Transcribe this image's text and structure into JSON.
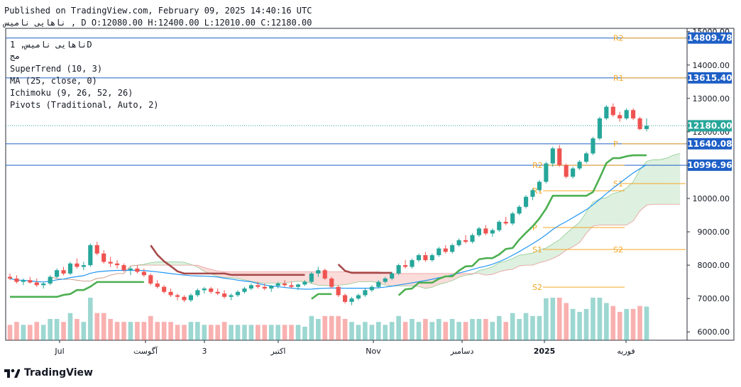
{
  "header": {
    "published": "Published on TradingView.com, February 09, 2025 14:40:16 UTC",
    "ohlc_line": "ناهایی نامیس , D O:12080.00 H:12400.00 L:12010.00 C:12180.00"
  },
  "legend": {
    "symbol": "ناهایی نامیس, 1D",
    "exchange": "مج",
    "indicators": [
      "SuperTrend (10, 3)",
      "MA (25, close, 0)",
      "Ichimoku (9, 26, 52, 26)",
      "Pivots (Traditional, Auto, 2)"
    ]
  },
  "branding": {
    "logo_text": "TradingView"
  },
  "colors": {
    "up": "#26a69a",
    "down": "#ef5350",
    "supertrend_up": "#4caf50",
    "supertrend_down": "#a84a4a",
    "ma": "#2196f3",
    "pivot": "#f5a623",
    "hline": "#1e5fc6",
    "cloud_red": "#f8c9c6",
    "cloud_green": "#cde8cf"
  },
  "chart_data": {
    "type": "candlestick",
    "title": "",
    "y_axis": {
      "ticks": [
        "15000.00",
        "14000.00",
        "13000.00",
        "12000.00",
        "11000.00",
        "10000.00",
        "9000.00",
        "8000.00",
        "7000.00",
        "6000.00"
      ],
      "ylim": [
        5750,
        15100
      ]
    },
    "x_axis": {
      "labels": [
        "Jul",
        "آگوست",
        "3",
        "اکتبر",
        "Nov",
        "دسامبر",
        "2025",
        "فوریه"
      ]
    },
    "last_close": 12180,
    "price_labels": [
      {
        "text": "14809.78",
        "value": 14809.78
      },
      {
        "text": "13615.40",
        "value": 13615.4
      },
      {
        "text": "12180.00",
        "value": 12180.0
      },
      {
        "text": "11640.08",
        "value": 11640.08
      },
      {
        "text": "10996.96",
        "value": 10996.96
      }
    ],
    "pivots_current": [
      {
        "label": "R2",
        "value": 14809.78
      },
      {
        "label": "R1",
        "value": 13615.4
      },
      {
        "label": "P",
        "value": 11640.08
      },
      {
        "label": "S1",
        "value": 10446
      },
      {
        "label": "S2",
        "value": 8470
      }
    ],
    "pivots_previous": [
      {
        "label": "R2",
        "value": 10996.96
      },
      {
        "label": "R1",
        "value": 10230
      },
      {
        "label": "P",
        "value": 9130
      },
      {
        "label": "S1",
        "value": 8470
      },
      {
        "label": "S2",
        "value": 7340
      }
    ],
    "candles": [
      [
        7650,
        7750,
        7550,
        7600
      ],
      [
        7600,
        7700,
        7450,
        7500
      ],
      [
        7500,
        7600,
        7400,
        7550
      ],
      [
        7550,
        7650,
        7450,
        7480
      ],
      [
        7480,
        7600,
        7350,
        7400
      ],
      [
        7400,
        7500,
        7300,
        7450
      ],
      [
        7450,
        7700,
        7400,
        7650
      ],
      [
        7650,
        7900,
        7600,
        7850
      ],
      [
        7850,
        7950,
        7700,
        7750
      ],
      [
        7750,
        8100,
        7700,
        8050
      ],
      [
        8050,
        8200,
        7900,
        7950
      ],
      [
        7950,
        8100,
        7850,
        8000
      ],
      [
        8000,
        8650,
        7950,
        8600
      ],
      [
        8600,
        8700,
        8300,
        8350
      ],
      [
        8350,
        8450,
        8050,
        8100
      ],
      [
        8100,
        8250,
        7950,
        8050
      ],
      [
        8050,
        8150,
        7900,
        8000
      ],
      [
        8000,
        8050,
        7800,
        7850
      ],
      [
        7850,
        7950,
        7700,
        7900
      ],
      [
        7900,
        8000,
        7750,
        7800
      ],
      [
        7800,
        7900,
        7650,
        7700
      ],
      [
        7700,
        7750,
        7400,
        7450
      ],
      [
        7450,
        7550,
        7300,
        7350
      ],
      [
        7350,
        7400,
        7150,
        7200
      ],
      [
        7200,
        7300,
        7050,
        7100
      ],
      [
        7100,
        7150,
        6950,
        7050
      ],
      [
        7050,
        7100,
        6900,
        6950
      ],
      [
        6950,
        7150,
        6900,
        7100
      ],
      [
        7100,
        7300,
        7050,
        7250
      ],
      [
        7250,
        7350,
        7150,
        7300
      ],
      [
        7300,
        7350,
        7150,
        7200
      ],
      [
        7200,
        7300,
        7100,
        7150
      ],
      [
        7150,
        7250,
        7000,
        7050
      ],
      [
        7050,
        7150,
        6950,
        7100
      ],
      [
        7100,
        7250,
        7050,
        7200
      ],
      [
        7200,
        7350,
        7150,
        7300
      ],
      [
        7300,
        7450,
        7250,
        7400
      ],
      [
        7400,
        7500,
        7300,
        7350
      ],
      [
        7350,
        7450,
        7250,
        7300
      ],
      [
        7300,
        7400,
        7200,
        7380
      ],
      [
        7380,
        7500,
        7300,
        7450
      ],
      [
        7450,
        7550,
        7350,
        7400
      ],
      [
        7400,
        7500,
        7300,
        7350
      ],
      [
        7350,
        7450,
        7250,
        7420
      ],
      [
        7420,
        7550,
        7380,
        7500
      ],
      [
        7500,
        7800,
        7450,
        7750
      ],
      [
        7750,
        7950,
        7650,
        7850
      ],
      [
        7850,
        7900,
        7550,
        7600
      ],
      [
        7600,
        7650,
        7300,
        7350
      ],
      [
        7350,
        7400,
        7050,
        7100
      ],
      [
        7100,
        7150,
        6850,
        6900
      ],
      [
        6900,
        7050,
        6800,
        7000
      ],
      [
        7000,
        7150,
        6950,
        7100
      ],
      [
        7100,
        7300,
        7050,
        7250
      ],
      [
        7250,
        7400,
        7200,
        7350
      ],
      [
        7350,
        7550,
        7300,
        7500
      ],
      [
        7500,
        7650,
        7450,
        7600
      ],
      [
        7600,
        7800,
        7550,
        7750
      ],
      [
        7750,
        8050,
        7700,
        8000
      ],
      [
        8000,
        8150,
        7900,
        7950
      ],
      [
        7950,
        8200,
        7900,
        8150
      ],
      [
        8150,
        8350,
        8100,
        8300
      ],
      [
        8300,
        8400,
        8100,
        8150
      ],
      [
        8150,
        8350,
        8100,
        8300
      ],
      [
        8300,
        8550,
        8250,
        8500
      ],
      [
        8500,
        8600,
        8350,
        8400
      ],
      [
        8400,
        8650,
        8350,
        8600
      ],
      [
        8600,
        8800,
        8550,
        8750
      ],
      [
        8750,
        8900,
        8650,
        8700
      ],
      [
        8700,
        8950,
        8650,
        8900
      ],
      [
        8900,
        9150,
        8850,
        9100
      ],
      [
        9100,
        9200,
        8900,
        8950
      ],
      [
        8950,
        9100,
        8850,
        9050
      ],
      [
        9050,
        9350,
        9000,
        9300
      ],
      [
        9300,
        9450,
        9200,
        9250
      ],
      [
        9250,
        9600,
        9200,
        9550
      ],
      [
        9550,
        9800,
        9500,
        9750
      ],
      [
        9750,
        10100,
        9700,
        10050
      ],
      [
        10050,
        10300,
        9950,
        10250
      ],
      [
        10250,
        10550,
        10200,
        10500
      ],
      [
        10500,
        11100,
        10450,
        11050
      ],
      [
        11050,
        11550,
        10950,
        11500
      ],
      [
        11500,
        11600,
        10950,
        11000
      ],
      [
        11000,
        11050,
        10600,
        10650
      ],
      [
        10650,
        10950,
        10600,
        10900
      ],
      [
        10900,
        11150,
        10850,
        11100
      ],
      [
        11100,
        11400,
        11050,
        11350
      ],
      [
        11350,
        11850,
        11300,
        11800
      ],
      [
        11800,
        12450,
        11750,
        12400
      ],
      [
        12400,
        12800,
        12350,
        12750
      ],
      [
        12750,
        12850,
        12450,
        12500
      ],
      [
        12500,
        12600,
        12300,
        12400
      ],
      [
        12400,
        12700,
        12350,
        12650
      ],
      [
        12650,
        12700,
        12350,
        12400
      ],
      [
        12400,
        12450,
        12050,
        12080
      ],
      [
        12080,
        12400,
        12010,
        12180
      ]
    ]
  }
}
